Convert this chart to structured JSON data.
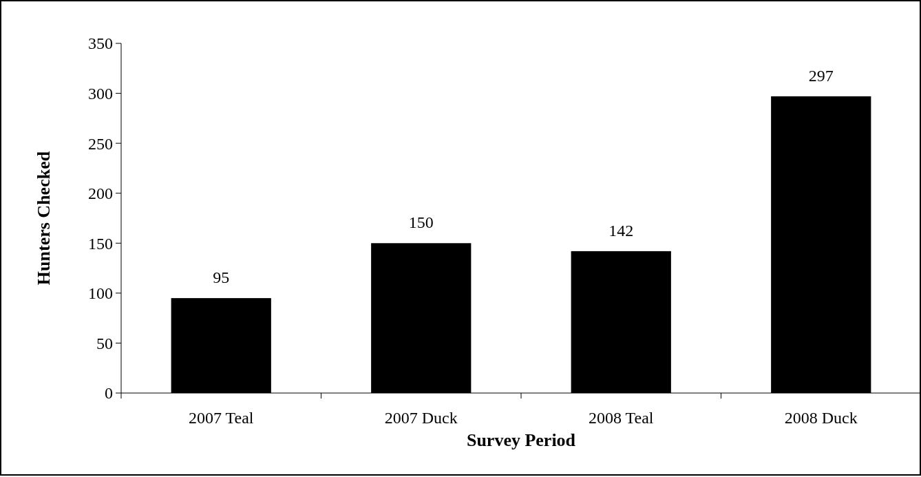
{
  "chart_data": {
    "type": "bar",
    "xlabel": "Survey Period",
    "ylabel": "Hunters Checked",
    "categories": [
      "2007 Teal",
      "2007 Duck",
      "2008 Teal",
      "2008 Duck"
    ],
    "values": [
      95,
      150,
      142,
      297
    ],
    "color": "#000000",
    "data_labels": true,
    "ylim": [
      0,
      350
    ],
    "yticks": [
      0,
      50,
      100,
      150,
      200,
      250,
      300,
      350
    ],
    "grid": false
  }
}
